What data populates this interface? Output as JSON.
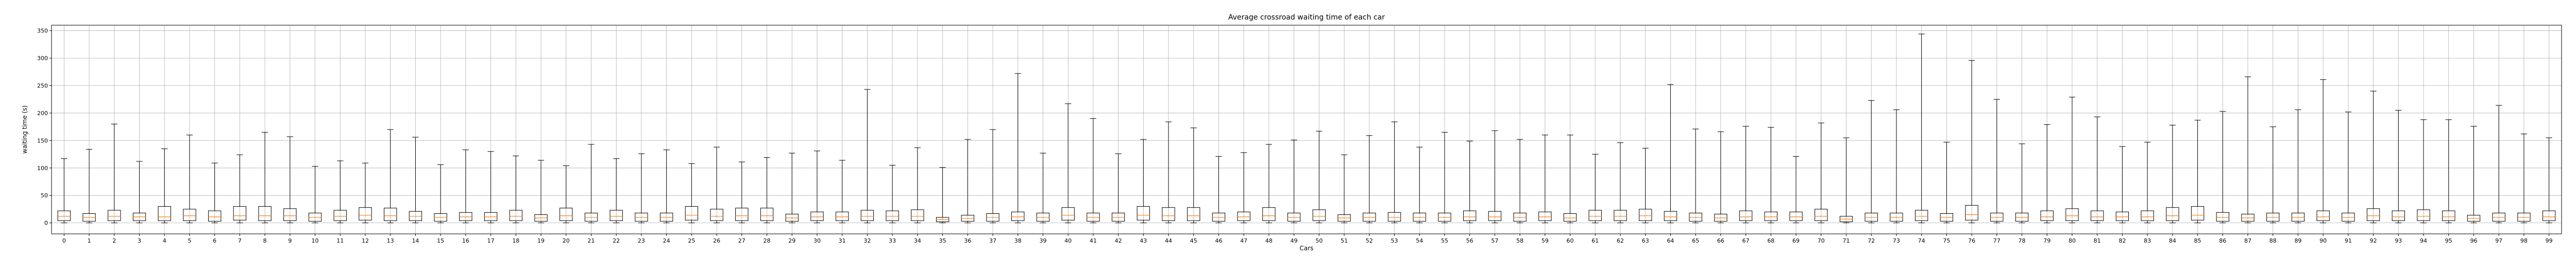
{
  "chart_data": {
    "type": "box",
    "title": "Average crossroad waiting time of each car",
    "xlabel": "Cars",
    "ylabel": "waiting time (s)",
    "ylim": [
      -20,
      360
    ],
    "yticks": [
      0,
      50,
      100,
      150,
      200,
      250,
      300,
      350
    ],
    "grid": true,
    "colors": {
      "box": "#000000",
      "median": "#ff7f0e",
      "grid": "#b0b0b0"
    },
    "categories": [
      "0",
      "1",
      "2",
      "3",
      "4",
      "5",
      "6",
      "7",
      "8",
      "9",
      "10",
      "11",
      "12",
      "13",
      "14",
      "15",
      "16",
      "17",
      "18",
      "19",
      "20",
      "21",
      "22",
      "23",
      "24",
      "25",
      "26",
      "27",
      "28",
      "29",
      "30",
      "31",
      "32",
      "33",
      "34",
      "35",
      "36",
      "37",
      "38",
      "39",
      "40",
      "41",
      "42",
      "43",
      "44",
      "45",
      "46",
      "47",
      "48",
      "49",
      "50",
      "51",
      "52",
      "53",
      "54",
      "55",
      "56",
      "57",
      "58",
      "59",
      "60",
      "61",
      "62",
      "63",
      "64",
      "65",
      "66",
      "67",
      "68",
      "69",
      "70",
      "71",
      "72",
      "73",
      "74",
      "75",
      "76",
      "77",
      "78",
      "79",
      "80",
      "81",
      "82",
      "83",
      "84",
      "85",
      "86",
      "87",
      "88",
      "89",
      "90",
      "91",
      "92",
      "93",
      "94",
      "95",
      "96",
      "97",
      "98",
      "99"
    ],
    "whisker_high": [
      117,
      134,
      180,
      112,
      135,
      160,
      109,
      124,
      165,
      157,
      103,
      113,
      109,
      170,
      156,
      106,
      133,
      130,
      122,
      114,
      104,
      143,
      117,
      126,
      133,
      108,
      138,
      111,
      119,
      127,
      131,
      114,
      243,
      105,
      137,
      101,
      152,
      170,
      272,
      127,
      217,
      190,
      126,
      152,
      184,
      173,
      121,
      128,
      143,
      151,
      167,
      124,
      159,
      184,
      138,
      165,
      149,
      168,
      152,
      160,
      160,
      125,
      146,
      136,
      252,
      171,
      166,
      176,
      174,
      121,
      182,
      155,
      223,
      206,
      344,
      147,
      296,
      225,
      144,
      179,
      229,
      193,
      139,
      147,
      178,
      187,
      203,
      266,
      175,
      206,
      261,
      202,
      240,
      205,
      188,
      188,
      176,
      214,
      162,
      155
    ],
    "q3": [
      22,
      17,
      23,
      18,
      30,
      25,
      22,
      30,
      30,
      26,
      18,
      23,
      28,
      27,
      21,
      17,
      19,
      19,
      23,
      15,
      27,
      18,
      23,
      18,
      18,
      30,
      25,
      27,
      27,
      16,
      20,
      20,
      23,
      22,
      24,
      10,
      14,
      17,
      20,
      18,
      28,
      18,
      18,
      30,
      28,
      28,
      18,
      20,
      28,
      18,
      24,
      15,
      18,
      19,
      18,
      18,
      22,
      21,
      18,
      20,
      17,
      23,
      23,
      25,
      21,
      18,
      16,
      22,
      20,
      20,
      25,
      12,
      18,
      18,
      23,
      17,
      32,
      18,
      18,
      22,
      26,
      22,
      20,
      22,
      28,
      30,
      19,
      16,
      18,
      18,
      22,
      18,
      26,
      22,
      24,
      22,
      14,
      18,
      18,
      22
    ],
    "median": [
      12,
      10,
      12,
      11,
      11,
      13,
      11,
      13,
      13,
      13,
      10,
      12,
      14,
      13,
      12,
      10,
      11,
      11,
      12,
      9,
      13,
      10,
      12,
      10,
      10,
      14,
      12,
      13,
      13,
      9,
      11,
      11,
      12,
      12,
      12,
      6,
      8,
      10,
      11,
      10,
      14,
      10,
      10,
      14,
      13,
      13,
      10,
      11,
      13,
      10,
      12,
      9,
      10,
      10,
      10,
      10,
      11,
      11,
      10,
      11,
      9,
      12,
      12,
      13,
      11,
      10,
      9,
      11,
      11,
      11,
      12,
      7,
      10,
      10,
      12,
      10,
      15,
      10,
      10,
      11,
      13,
      11,
      11,
      11,
      13,
      14,
      10,
      9,
      10,
      10,
      11,
      10,
      13,
      11,
      12,
      11,
      8,
      10,
      10,
      11
    ],
    "q1": [
      4,
      3,
      4,
      4,
      4,
      4,
      3,
      5,
      4,
      4,
      3,
      4,
      5,
      4,
      4,
      3,
      4,
      4,
      4,
      3,
      4,
      3,
      4,
      3,
      3,
      5,
      4,
      4,
      4,
      3,
      4,
      4,
      4,
      4,
      4,
      2,
      3,
      3,
      4,
      3,
      5,
      3,
      3,
      5,
      4,
      4,
      3,
      4,
      4,
      3,
      4,
      3,
      3,
      3,
      3,
      3,
      4,
      4,
      3,
      4,
      3,
      4,
      4,
      4,
      4,
      3,
      3,
      4,
      4,
      4,
      4,
      2,
      3,
      3,
      4,
      3,
      5,
      3,
      3,
      4,
      4,
      4,
      4,
      4,
      4,
      5,
      3,
      3,
      3,
      3,
      4,
      3,
      4,
      4,
      4,
      4,
      3,
      3,
      3,
      4
    ],
    "whisker_low": [
      0,
      0,
      0,
      0,
      0,
      0,
      0,
      0,
      0,
      0,
      0,
      0,
      0,
      0,
      0,
      0,
      0,
      0,
      0,
      0,
      0,
      0,
      0,
      0,
      0,
      0,
      0,
      0,
      0,
      0,
      0,
      0,
      0,
      0,
      0,
      0,
      0,
      0,
      0,
      0,
      0,
      0,
      0,
      0,
      0,
      0,
      0,
      0,
      0,
      0,
      0,
      0,
      0,
      0,
      0,
      0,
      0,
      0,
      0,
      0,
      0,
      0,
      0,
      0,
      0,
      0,
      0,
      0,
      0,
      0,
      0,
      0,
      0,
      0,
      0,
      0,
      0,
      0,
      0,
      0,
      0,
      0,
      0,
      0,
      0,
      0,
      0,
      0,
      0,
      0,
      0,
      0,
      0,
      0,
      0,
      0,
      0,
      0,
      0,
      0
    ]
  }
}
